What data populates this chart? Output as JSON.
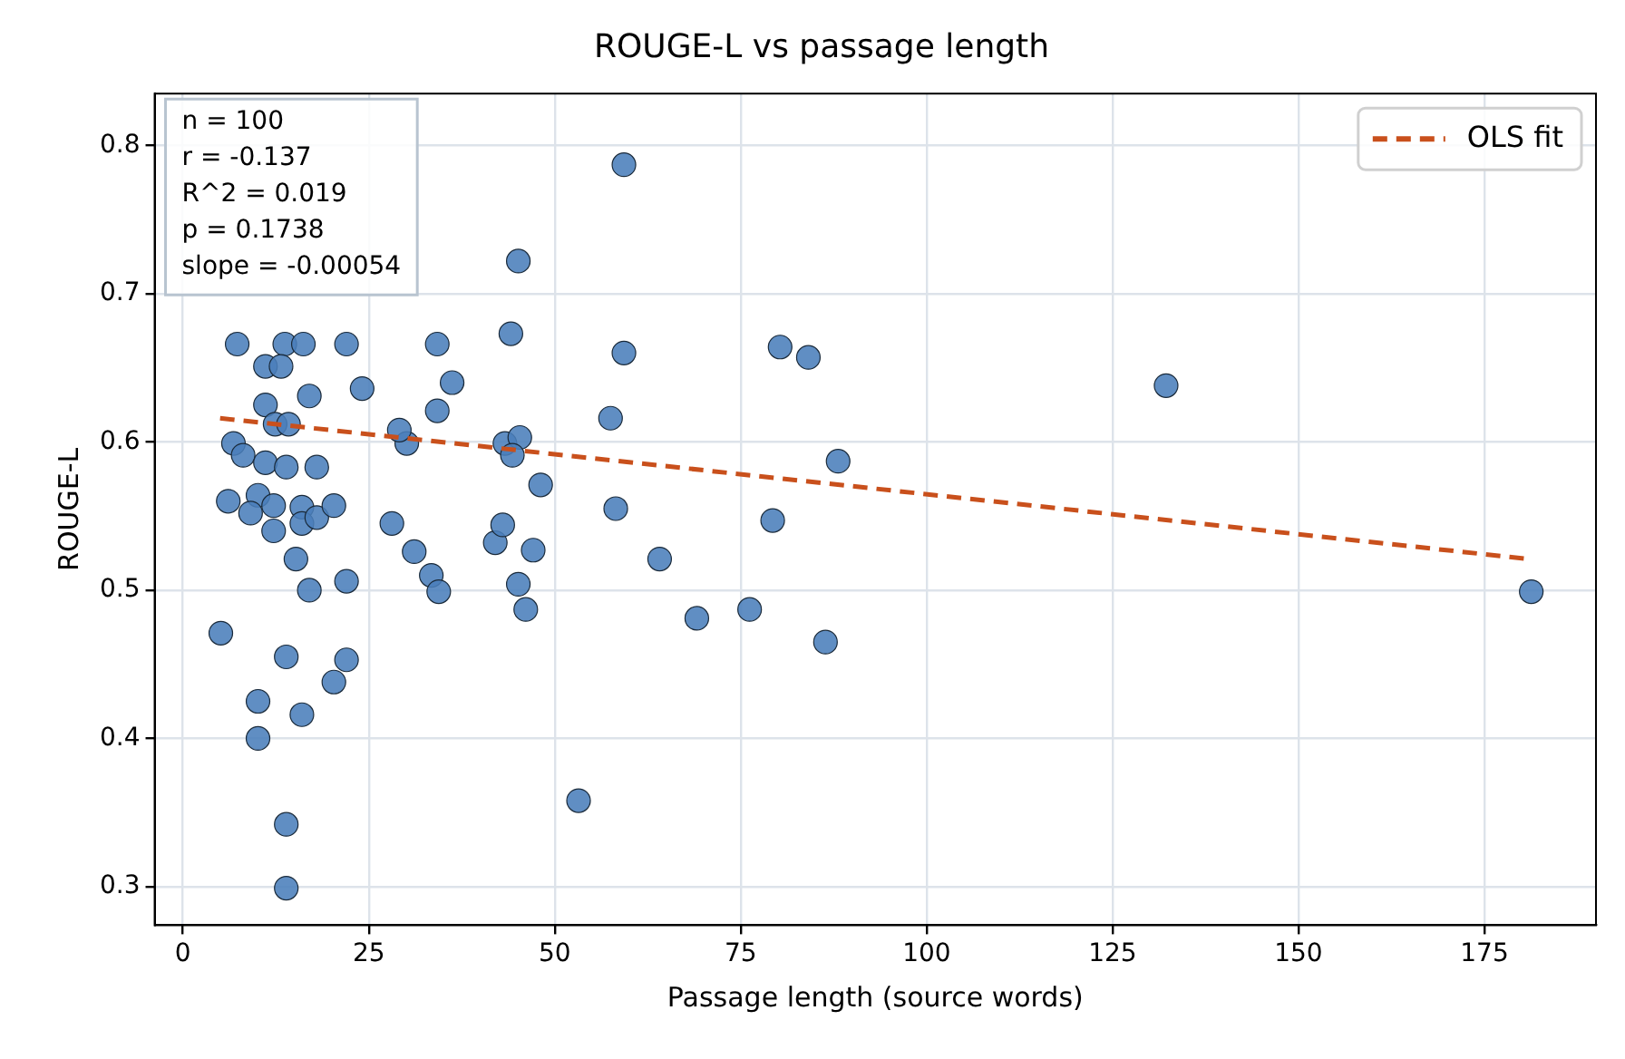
{
  "chart_data": {
    "type": "scatter",
    "title": "ROUGE-L vs passage length",
    "xlabel": "Passage length (source words)",
    "ylabel": "ROUGE-L",
    "xlim": [
      -3.8,
      190
    ],
    "ylim": [
      0.274,
      0.835
    ],
    "xticks": [
      0,
      25,
      50,
      75,
      100,
      125,
      150,
      175
    ],
    "yticks": [
      0.3,
      0.4,
      0.5,
      0.6,
      0.7,
      0.8
    ],
    "grid": true,
    "legend": "top right",
    "marker": "circle",
    "annotations": [
      "n = 100",
      "r = -0.137",
      "R^2 = 0.019",
      "p = 0.1738",
      "slope = -0.00054"
    ],
    "series": [
      {
        "color": "#4a7ebb",
        "x": [
          5.1,
          6.1,
          6.8,
          8.1,
          11.1,
          13.9,
          18.0,
          30.1,
          10.1,
          9.1,
          12.2,
          12.2,
          16.0,
          16.0,
          18.0,
          20.3,
          15.2,
          17.0,
          22.0,
          28.1,
          31.1,
          33.4,
          34.4,
          42.0,
          43.0,
          45.1,
          46.1,
          13.9,
          22.0,
          20.3,
          10.1,
          16.0,
          10.1,
          13.9,
          13.9,
          59.3,
          45.1,
          44.1,
          34.2,
          22.0,
          59.3,
          24.1,
          36.2,
          34.2,
          29.1,
          43.3,
          45.3,
          44.3,
          57.5,
          48.1,
          88.1,
          80.3,
          84.1,
          58.2,
          79.3,
          47.1,
          64.1,
          69.1,
          76.2,
          86.4,
          53.2,
          132.2,
          181.3,
          7.3,
          13.7,
          16.2,
          11.1,
          13.2,
          17.0,
          11.1,
          12.4,
          14.2
        ],
        "values": [
          0.471,
          0.56,
          0.599,
          0.591,
          0.586,
          0.583,
          0.583,
          0.599,
          0.564,
          0.552,
          0.557,
          0.54,
          0.556,
          0.545,
          0.549,
          0.557,
          0.521,
          0.5,
          0.506,
          0.545,
          0.526,
          0.51,
          0.499,
          0.532,
          0.544,
          0.504,
          0.487,
          0.455,
          0.453,
          0.438,
          0.425,
          0.416,
          0.4,
          0.342,
          0.299,
          0.787,
          0.722,
          0.673,
          0.666,
          0.666,
          0.66,
          0.636,
          0.64,
          0.621,
          0.608,
          0.599,
          0.603,
          0.591,
          0.616,
          0.571,
          0.587,
          0.664,
          0.657,
          0.555,
          0.547,
          0.527,
          0.521,
          0.481,
          0.487,
          0.465,
          0.358,
          0.638,
          0.499,
          0.666,
          0.666,
          0.666,
          0.651,
          0.651,
          0.631,
          0.625,
          0.612,
          0.612
        ]
      },
      {
        "type": "line",
        "name": "OLS fit",
        "color": "#c9501c",
        "line_style": "dashed",
        "marker": "none",
        "x": [
          5,
          181
        ],
        "values": [
          0.616,
          0.521
        ]
      }
    ]
  }
}
